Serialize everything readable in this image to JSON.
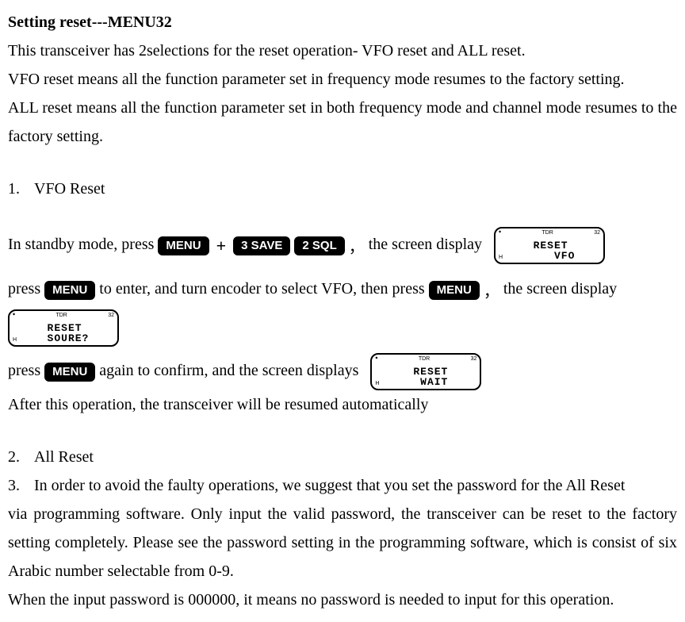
{
  "heading": "Setting reset---MENU32",
  "intro_l1": "This transceiver has 2selections for the reset operation- VFO reset and ALL reset.",
  "intro_l2": "VFO reset means all the function parameter set in frequency mode resumes to the factory setting.",
  "intro_l3": "ALL reset means all the function parameter set in both frequency mode and channel mode resumes to the factory setting.",
  "item1_num": "1.",
  "item1_label": "VFO Reset",
  "step1_a": "In standby mode, press ",
  "btn_menu": "MENU",
  "plus": "+",
  "btn_3": "3 SAVE",
  "btn_2": "2 SQL",
  "comma": "，",
  "step1_b": " the screen display",
  "lcd1_tl": "TDR",
  "lcd1_tr": "32",
  "lcd1_bl": "H",
  "lcd1_text": " RESET\n    VFO",
  "step2_a": "press ",
  "step2_b": " to enter, and turn encoder to select VFO, then press ",
  "step2_c": " the screen display",
  "lcd2_text": " RESET\n SOURE?",
  "step3_a": "press ",
  "step3_b": " again to confirm, and the screen displays ",
  "lcd3_text": " RESET\n  WAIT",
  "step3_after": "After this operation, the transceiver will be resumed automatically",
  "item2_num": "2.",
  "item2_label": "All Reset",
  "item3_num": "3.",
  "item3_l1": "In order to avoid the faulty operations, we suggest that you set the password for the All Reset",
  "item3_l2": "via programming software. Only input the valid password, the transceiver can be reset to the factory setting completely. Please see the password setting in the programming software, which is consist of six Arabic number selectable from 0-9.",
  "item3_l3": "When the input password is 000000, it means no password is needed to input for this operation.",
  "bullet": "◆",
  "lcd_side_h": "H"
}
